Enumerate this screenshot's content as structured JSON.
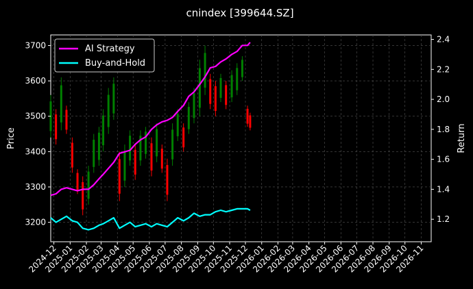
{
  "chart_data": {
    "type": "line",
    "title": "cnindex [399644.SZ]",
    "ylabel_left": "Price",
    "ylabel_right": "Return",
    "ylim_left": [
      3145,
      3730
    ],
    "ylim_right": [
      1.05,
      2.43
    ],
    "left_ticks": [
      3200,
      3300,
      3400,
      3500,
      3600,
      3700
    ],
    "right_ticks": [
      1.2,
      1.4,
      1.6,
      1.8,
      2.0,
      2.2,
      2.4
    ],
    "right_tick_labels": [
      "1.2",
      "1.4",
      "1.6",
      "1.8",
      "2.0",
      "2.2",
      "2.4"
    ],
    "x_ticks": [
      "2024-12",
      "2025-01",
      "2025-02",
      "2025-03",
      "2025-04",
      "2025-05",
      "2025-06",
      "2025-07",
      "2025-08",
      "2025-09",
      "2025-10",
      "2025-11",
      "2025-12",
      "2026-01",
      "2026-02",
      "2026-03",
      "2026-04",
      "2026-05",
      "2026-06",
      "2026-07",
      "2026-08",
      "2026-09",
      "2026-10",
      "2026-11"
    ],
    "x_range": [
      "2024-11-25",
      "2026-11-20"
    ],
    "grid": true,
    "legend_position": "top-left",
    "series": [
      {
        "name": "AI Strategy",
        "axis": "right",
        "color": "#ff00ff",
        "points": [
          [
            "2024-11-25",
            1.36
          ],
          [
            "2024-12-05",
            1.37
          ],
          [
            "2024-12-15",
            1.4
          ],
          [
            "2024-12-25",
            1.41
          ],
          [
            "2025-01-05",
            1.4
          ],
          [
            "2025-01-15",
            1.39
          ],
          [
            "2025-01-25",
            1.4
          ],
          [
            "2025-02-05",
            1.4
          ],
          [
            "2025-02-15",
            1.43
          ],
          [
            "2025-02-25",
            1.47
          ],
          [
            "2025-03-05",
            1.5
          ],
          [
            "2025-03-15",
            1.54
          ],
          [
            "2025-03-25",
            1.58
          ],
          [
            "2025-04-05",
            1.64
          ],
          [
            "2025-04-15",
            1.65
          ],
          [
            "2025-04-25",
            1.66
          ],
          [
            "2025-05-05",
            1.7
          ],
          [
            "2025-05-15",
            1.73
          ],
          [
            "2025-05-25",
            1.75
          ],
          [
            "2025-06-05",
            1.8
          ],
          [
            "2025-06-15",
            1.83
          ],
          [
            "2025-06-25",
            1.85
          ],
          [
            "2025-07-05",
            1.86
          ],
          [
            "2025-07-15",
            1.88
          ],
          [
            "2025-07-25",
            1.92
          ],
          [
            "2025-08-05",
            1.96
          ],
          [
            "2025-08-15",
            2.02
          ],
          [
            "2025-08-25",
            2.05
          ],
          [
            "2025-09-05",
            2.1
          ],
          [
            "2025-09-15",
            2.15
          ],
          [
            "2025-09-25",
            2.21
          ],
          [
            "2025-10-05",
            2.22
          ],
          [
            "2025-10-15",
            2.25
          ],
          [
            "2025-10-25",
            2.27
          ],
          [
            "2025-11-05",
            2.3
          ],
          [
            "2025-11-15",
            2.32
          ],
          [
            "2025-11-25",
            2.36
          ],
          [
            "2025-12-05",
            2.36
          ],
          [
            "2025-12-10",
            2.38
          ]
        ]
      },
      {
        "name": "Buy-and-Hold",
        "axis": "right",
        "color": "#00ffff",
        "points": [
          [
            "2024-11-25",
            1.21
          ],
          [
            "2024-12-05",
            1.18
          ],
          [
            "2024-12-15",
            1.2
          ],
          [
            "2024-12-25",
            1.22
          ],
          [
            "2025-01-05",
            1.19
          ],
          [
            "2025-01-15",
            1.18
          ],
          [
            "2025-01-25",
            1.14
          ],
          [
            "2025-02-05",
            1.13
          ],
          [
            "2025-02-15",
            1.14
          ],
          [
            "2025-02-25",
            1.16
          ],
          [
            "2025-03-05",
            1.17
          ],
          [
            "2025-03-15",
            1.19
          ],
          [
            "2025-03-25",
            1.21
          ],
          [
            "2025-04-05",
            1.14
          ],
          [
            "2025-04-15",
            1.16
          ],
          [
            "2025-04-25",
            1.18
          ],
          [
            "2025-05-05",
            1.15
          ],
          [
            "2025-05-15",
            1.16
          ],
          [
            "2025-05-25",
            1.17
          ],
          [
            "2025-06-05",
            1.15
          ],
          [
            "2025-06-15",
            1.17
          ],
          [
            "2025-06-25",
            1.16
          ],
          [
            "2025-07-05",
            1.15
          ],
          [
            "2025-07-15",
            1.18
          ],
          [
            "2025-07-25",
            1.21
          ],
          [
            "2025-08-05",
            1.19
          ],
          [
            "2025-08-15",
            1.21
          ],
          [
            "2025-08-25",
            1.24
          ],
          [
            "2025-09-05",
            1.22
          ],
          [
            "2025-09-15",
            1.23
          ],
          [
            "2025-09-25",
            1.23
          ],
          [
            "2025-10-05",
            1.25
          ],
          [
            "2025-10-15",
            1.26
          ],
          [
            "2025-10-25",
            1.25
          ],
          [
            "2025-11-05",
            1.26
          ],
          [
            "2025-11-15",
            1.27
          ],
          [
            "2025-11-25",
            1.27
          ],
          [
            "2025-12-05",
            1.27
          ],
          [
            "2025-12-10",
            1.26
          ]
        ]
      },
      {
        "name": "",
        "axis": "left",
        "type": "candles",
        "up_color": "#008000",
        "down_color": "#ff0000",
        "points": [
          [
            "2024-11-25",
            3440,
            3560
          ],
          [
            "2024-12-05",
            3420,
            3520
          ],
          [
            "2024-12-15",
            3460,
            3610
          ],
          [
            "2024-12-25",
            3450,
            3530
          ],
          [
            "2025-01-05",
            3340,
            3440
          ],
          [
            "2025-01-15",
            3280,
            3350
          ],
          [
            "2025-01-25",
            3220,
            3330
          ],
          [
            "2025-02-05",
            3250,
            3360
          ],
          [
            "2025-02-15",
            3340,
            3450
          ],
          [
            "2025-02-25",
            3360,
            3470
          ],
          [
            "2025-03-05",
            3400,
            3520
          ],
          [
            "2025-03-15",
            3450,
            3580
          ],
          [
            "2025-03-25",
            3490,
            3610
          ],
          [
            "2025-04-05",
            3260,
            3400
          ],
          [
            "2025-04-15",
            3300,
            3420
          ],
          [
            "2025-04-25",
            3360,
            3460
          ],
          [
            "2025-05-05",
            3320,
            3420
          ],
          [
            "2025-05-15",
            3360,
            3460
          ],
          [
            "2025-05-25",
            3380,
            3470
          ],
          [
            "2025-06-05",
            3330,
            3440
          ],
          [
            "2025-06-15",
            3370,
            3480
          ],
          [
            "2025-06-25",
            3340,
            3420
          ],
          [
            "2025-07-05",
            3260,
            3380
          ],
          [
            "2025-07-15",
            3360,
            3480
          ],
          [
            "2025-07-25",
            3430,
            3520
          ],
          [
            "2025-08-05",
            3400,
            3480
          ],
          [
            "2025-08-15",
            3450,
            3540
          ],
          [
            "2025-08-25",
            3480,
            3580
          ],
          [
            "2025-09-05",
            3500,
            3660
          ],
          [
            "2025-09-15",
            3560,
            3700
          ],
          [
            "2025-09-25",
            3520,
            3620
          ],
          [
            "2025-10-05",
            3500,
            3600
          ],
          [
            "2025-10-15",
            3540,
            3620
          ],
          [
            "2025-10-25",
            3520,
            3600
          ],
          [
            "2025-11-05",
            3540,
            3630
          ],
          [
            "2025-11-15",
            3560,
            3650
          ],
          [
            "2025-11-25",
            3600,
            3670
          ],
          [
            "2025-12-05",
            3470,
            3530
          ],
          [
            "2025-12-10",
            3460,
            3510
          ]
        ]
      }
    ]
  }
}
